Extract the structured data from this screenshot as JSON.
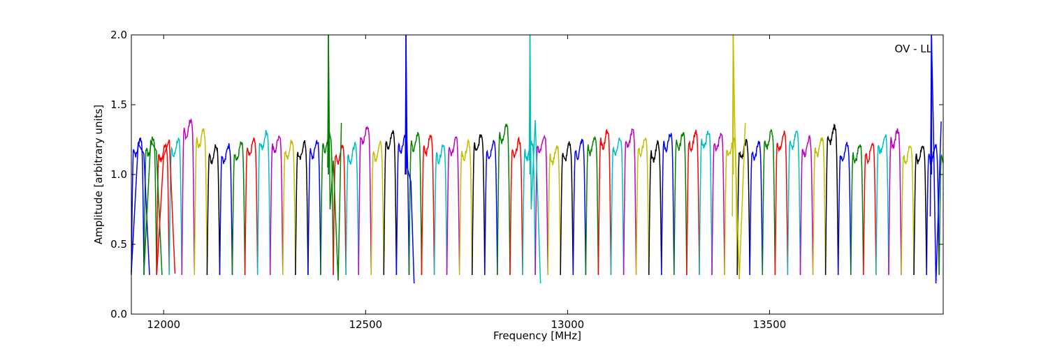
{
  "chart_data": {
    "type": "line",
    "title": "",
    "annotation": "OV - LL",
    "xlabel": "Frequency [MHz]",
    "ylabel": "Amplitude [arbitrary units]",
    "xlim": [
      11920,
      13930
    ],
    "ylim": [
      0.0,
      2.0
    ],
    "xticks": [
      12000,
      12500,
      13000,
      13500
    ],
    "yticks": [
      0.0,
      0.5,
      1.0,
      1.5,
      2.0
    ],
    "ytick_labels": [
      "0.0",
      "0.5",
      "1.0",
      "1.5",
      "2.0"
    ],
    "grid": false,
    "legend": "none",
    "colors": [
      "#0000ff",
      "#008000",
      "#ff0000",
      "#00bfbf",
      "#bf00bf",
      "#bfbf00",
      "#000000"
    ],
    "channel": {
      "width_mhz": 31.25,
      "start_mhz": 11920,
      "count": 65,
      "plateau_level": 1.2,
      "trough_level": 0.28
    },
    "series": [
      {
        "name": "",
        "color": "#0000ff",
        "x": [
          11920,
          11937,
          11951,
          11965
        ],
        "y": [
          0.3,
          1.22,
          1.15,
          0.28
        ]
      },
      {
        "name": "",
        "color": "#008000",
        "x": [
          11951,
          11968,
          11982,
          11996
        ],
        "y": [
          0.28,
          1.24,
          1.17,
          0.28
        ]
      },
      {
        "name": "",
        "color": "#ff0000",
        "x": [
          11983,
          12000,
          12014,
          12028
        ],
        "y": [
          0.29,
          1.13,
          1.25,
          0.29
        ]
      },
      {
        "name": "",
        "color": "#008000",
        "x": [
          12406,
          12408,
          12412,
          12420,
          12432,
          12440
        ],
        "y": [
          1.05,
          2.0,
          0.75,
          1.1,
          0.24,
          1.37
        ]
      },
      {
        "name": "",
        "color": "#0000ff",
        "x": [
          12598,
          12600,
          12603,
          12612,
          12620
        ],
        "y": [
          1.0,
          2.0,
          1.05,
          0.95,
          0.22
        ]
      },
      {
        "name": "",
        "color": "#00bfbf",
        "x": [
          12905,
          12907,
          12910,
          12920,
          12933
        ],
        "y": [
          1.1,
          2.0,
          0.75,
          1.39,
          0.22
        ]
      },
      {
        "name": "",
        "color": "#bfbf00",
        "x": [
          13408,
          13410,
          13414,
          13425,
          13440
        ],
        "y": [
          0.7,
          2.0,
          1.35,
          0.25,
          1.37
        ]
      },
      {
        "name": "",
        "color": "#0000ff",
        "x": [
          13898,
          13901,
          13906,
          13912,
          13925
        ],
        "y": [
          0.7,
          2.0,
          1.3,
          0.22,
          1.38
        ]
      }
    ],
    "spikes": [
      {
        "x": 12408,
        "color": "#008000"
      },
      {
        "x": 12600,
        "color": "#0000ff"
      },
      {
        "x": 12907,
        "color": "#00bfbf"
      },
      {
        "x": 13410,
        "color": "#bfbf00"
      },
      {
        "x": 13901,
        "color": "#0000ff"
      }
    ]
  }
}
